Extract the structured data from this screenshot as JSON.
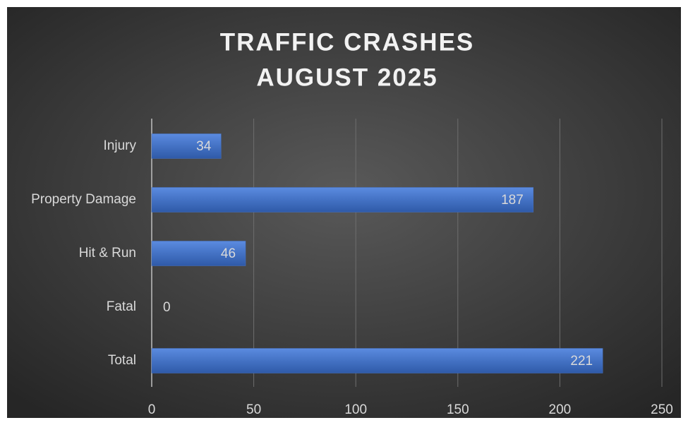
{
  "chart_data": {
    "type": "bar",
    "orientation": "horizontal",
    "title": [
      "TRAFFIC CRASHES",
      "AUGUST 2025"
    ],
    "categories": [
      "Injury",
      "Property Damage",
      "Hit & Run",
      "Fatal",
      "Total"
    ],
    "values": [
      34,
      187,
      46,
      0,
      221
    ],
    "color": "#4472c4",
    "xlim": [
      0,
      250
    ],
    "xticks": [
      0,
      50,
      100,
      150,
      200,
      250
    ],
    "grid": true
  }
}
